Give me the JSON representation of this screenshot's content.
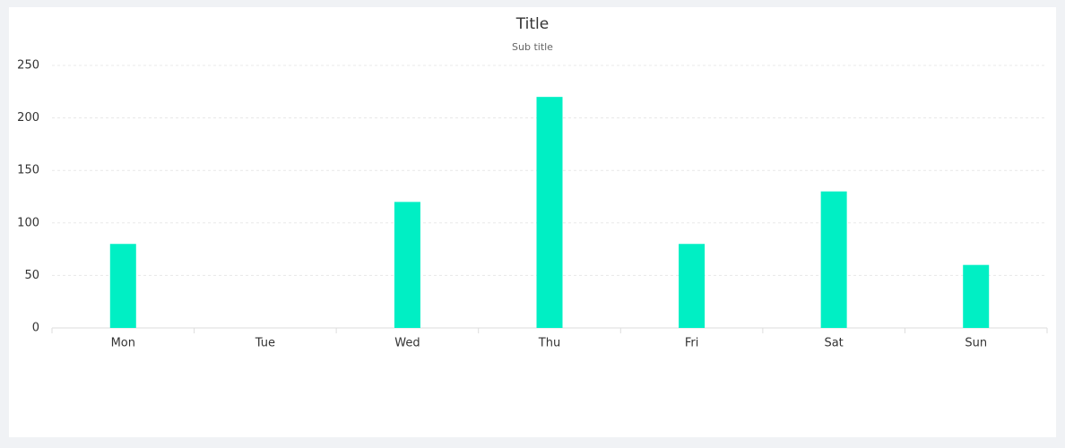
{
  "chart_data": {
    "type": "bar",
    "title": "Title",
    "subtitle": "Sub title",
    "categories": [
      "Mon",
      "Tue",
      "Wed",
      "Thu",
      "Fri",
      "Sat",
      "Sun"
    ],
    "values": [
      80,
      0,
      120,
      220,
      80,
      130,
      60
    ],
    "color": "#00efc4",
    "ylim": [
      0,
      250
    ],
    "yticks": [
      0,
      50,
      100,
      150,
      200,
      250
    ],
    "grid": true
  }
}
